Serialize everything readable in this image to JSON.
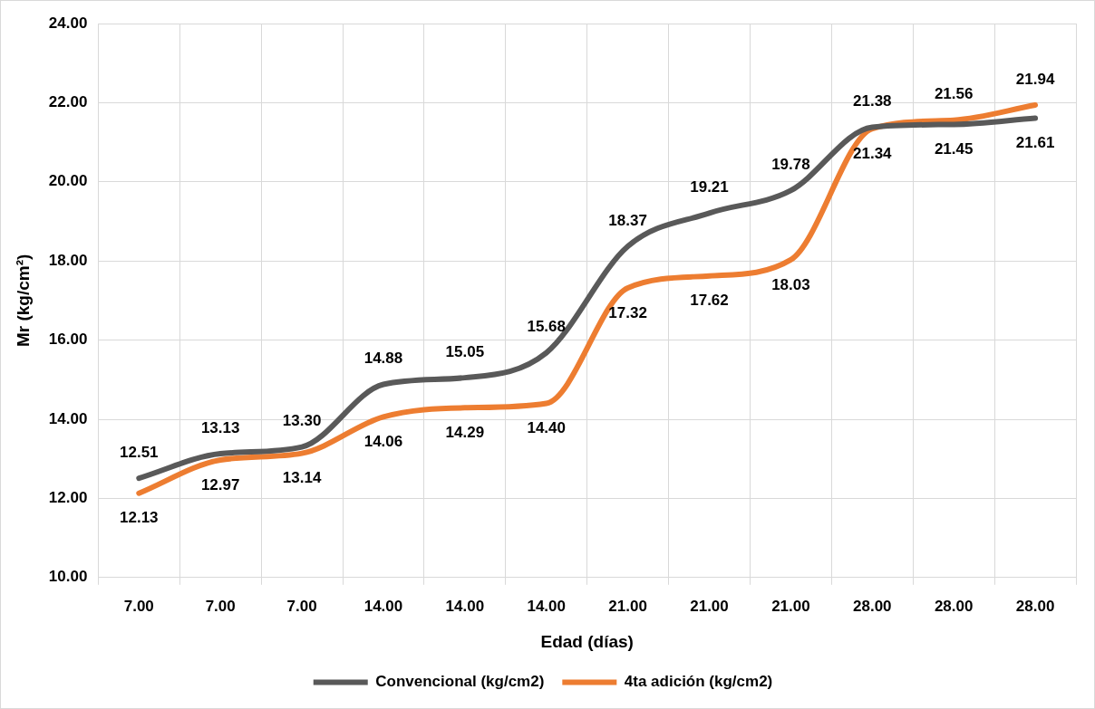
{
  "chart_data": {
    "type": "line",
    "xlabel": "Edad (días)",
    "ylabel": "Mr (kg/cm²)",
    "categories": [
      "7.00",
      "7.00",
      "7.00",
      "14.00",
      "14.00",
      "14.00",
      "21.00",
      "21.00",
      "21.00",
      "28.00",
      "28.00",
      "28.00"
    ],
    "series": [
      {
        "name": "Convencional (kg/cm2)",
        "color": "#595959",
        "values": [
          12.51,
          13.13,
          13.3,
          14.88,
          15.05,
          15.68,
          18.37,
          19.21,
          19.78,
          21.38,
          21.45,
          21.61
        ],
        "value_labels": [
          "12.51",
          "13.13",
          "13.30",
          "14.88",
          "15.05",
          "15.68",
          "18.37",
          "19.21",
          "19.78",
          "21.38",
          "21.45",
          "21.61"
        ]
      },
      {
        "name": "4ta adición (kg/cm2)",
        "color": "#ed7d31",
        "values": [
          12.13,
          12.97,
          13.14,
          14.06,
          14.29,
          14.4,
          17.32,
          17.62,
          18.03,
          21.34,
          21.56,
          21.94
        ],
        "value_labels": [
          "12.13",
          "12.97",
          "13.14",
          "14.06",
          "14.29",
          "14.40",
          "17.32",
          "17.62",
          "18.03",
          "21.34",
          "21.56",
          "21.94"
        ]
      }
    ],
    "ylim": [
      10,
      24
    ],
    "yticks": [
      {
        "value": 10,
        "label": "10.00"
      },
      {
        "value": 12,
        "label": "12.00"
      },
      {
        "value": 14,
        "label": "14.00"
      },
      {
        "value": 16,
        "label": "16.00"
      },
      {
        "value": 18,
        "label": "18.00"
      },
      {
        "value": 20,
        "label": "20.00"
      },
      {
        "value": 22,
        "label": "22.00"
      },
      {
        "value": 24,
        "label": "24.00"
      }
    ],
    "grid": true,
    "legend": "bottom",
    "marker": "none",
    "line_style": "solid"
  }
}
